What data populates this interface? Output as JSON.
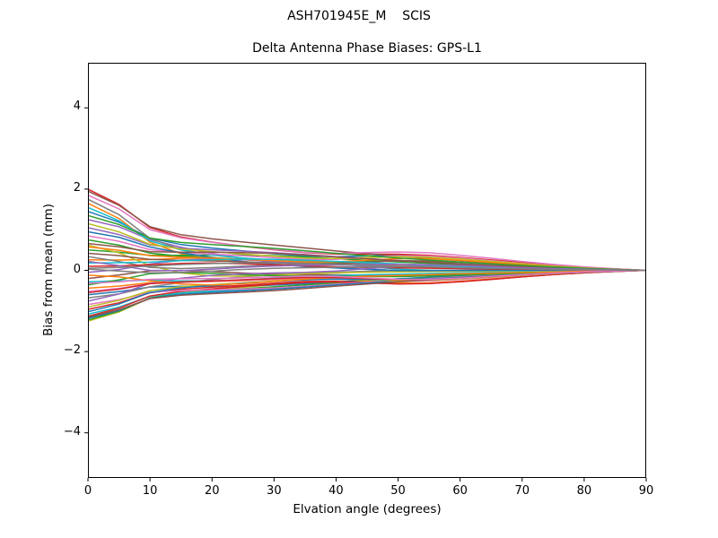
{
  "figure": {
    "suptitle": "ASH701945E_M    SCIS",
    "title": "Delta Antenna Phase Biases: GPS-L1",
    "background": "#ffffff",
    "frame_color": "#000000"
  },
  "axes": {
    "xlabel": "Elvation angle (degrees)",
    "ylabel": "Bias from mean (mm)",
    "xlim": [
      0,
      90
    ],
    "ylim": [
      -5.11,
      5.11
    ],
    "xticks": [
      {
        "v": 0,
        "label": "0"
      },
      {
        "v": 10,
        "label": "10"
      },
      {
        "v": 20,
        "label": "20"
      },
      {
        "v": 30,
        "label": "30"
      },
      {
        "v": 40,
        "label": "40"
      },
      {
        "v": 50,
        "label": "50"
      },
      {
        "v": 60,
        "label": "60"
      },
      {
        "v": 70,
        "label": "70"
      },
      {
        "v": 80,
        "label": "80"
      },
      {
        "v": 90,
        "label": "90"
      }
    ],
    "yticks": [
      {
        "v": -4,
        "label": "−4"
      },
      {
        "v": -2,
        "label": "−2"
      },
      {
        "v": 0,
        "label": "0"
      },
      {
        "v": 2,
        "label": "2"
      },
      {
        "v": 4,
        "label": "4"
      }
    ],
    "grid": false,
    "legend": "none"
  },
  "chart_data": {
    "type": "line",
    "title": "Delta Antenna Phase Biases: GPS-L1",
    "suptitle": "ASH701945E_M    SCIS",
    "xlabel": "Elvation angle (degrees)",
    "ylabel": "Bias from mean (mm)",
    "xlim": [
      0,
      90
    ],
    "ylim": [
      -5.11,
      5.11
    ],
    "grid": false,
    "legend": "none",
    "description": "Approximately 48 unlabeled antenna-calibration difference traces; each starts spread between -1.25 and +2.0 mm at 0 deg elevation, converges into a +/-0.6 mm band by 10-15 deg, bulges to about +/-0.4 mm near 50 deg, and converges to exactly 0 mm at 90 deg. value[i] = start*decay[i] + weight*bump[i].",
    "x": [
      0,
      5,
      10,
      15,
      20,
      25,
      30,
      35,
      40,
      45,
      50,
      55,
      60,
      65,
      70,
      75,
      80,
      85,
      90
    ],
    "decay": [
      1.0,
      0.8,
      0.5,
      0.37,
      0.3,
      0.25,
      0.21,
      0.18,
      0.155,
      0.135,
      0.115,
      0.1,
      0.085,
      0.07,
      0.055,
      0.04,
      0.025,
      0.012,
      0
    ],
    "bumps": {
      "g1": [
        0,
        0.1,
        0.3,
        0.45,
        0.5,
        0.46,
        0.38,
        0.3,
        0.24,
        0.2,
        0.17,
        0.14,
        0.11,
        0.09,
        0.07,
        0.05,
        0.03,
        0.015,
        0
      ],
      "g2": [
        0,
        0.05,
        0.12,
        0.18,
        0.21,
        0.21,
        0.19,
        0.17,
        0.2,
        0.29,
        0.37,
        0.38,
        0.33,
        0.26,
        0.18,
        0.11,
        0.06,
        0.025,
        0
      ],
      "g3": [
        0,
        0.08,
        0.2,
        0.31,
        0.38,
        0.42,
        0.43,
        0.4,
        0.35,
        0.3,
        0.25,
        0.2,
        0.15,
        0.11,
        0.08,
        0.05,
        0.03,
        0.012,
        0
      ],
      "g4": [
        0,
        -0.12,
        -0.22,
        -0.18,
        -0.08,
        0.04,
        0.12,
        0.17,
        0.2,
        0.23,
        0.25,
        0.23,
        0.19,
        0.15,
        0.11,
        0.07,
        0.04,
        0.02,
        0
      ]
    },
    "palette": [
      "#1f77b4",
      "#ff7f0e",
      "#2ca02c",
      "#d62728",
      "#9467bd",
      "#8c564b",
      "#e377c2",
      "#7f7f7f",
      "#bcbd22",
      "#17becf"
    ],
    "line_width": 1.5,
    "series": [
      {
        "color": "#1f77b4",
        "start": 1.45,
        "weight": 0.55,
        "bump": "g2"
      },
      {
        "color": "#ff7f0e",
        "start": 1.65,
        "weight": -0.45,
        "bump": "g1"
      },
      {
        "color": "#2ca02c",
        "start": 0.5,
        "weight": 0.6,
        "bump": "g3"
      },
      {
        "color": "#d62728",
        "start": 2.0,
        "weight": 0.45,
        "bump": "g2"
      },
      {
        "color": "#9467bd",
        "start": 1.25,
        "weight": -0.6,
        "bump": "g4"
      },
      {
        "color": "#8c564b",
        "start": 1.95,
        "weight": 0.5,
        "bump": "g3"
      },
      {
        "color": "#e377c2",
        "start": 1.85,
        "weight": 0.65,
        "bump": "g2"
      },
      {
        "color": "#7f7f7f",
        "start": 1.75,
        "weight": -0.3,
        "bump": "g1"
      },
      {
        "color": "#bcbd22",
        "start": -1.25,
        "weight": -0.5,
        "bump": "g2"
      },
      {
        "color": "#17becf",
        "start": 1.55,
        "weight": -0.4,
        "bump": "g2"
      },
      {
        "color": "#1f77b4",
        "start": -0.6,
        "weight": -0.55,
        "bump": "g3"
      },
      {
        "color": "#ff7f0e",
        "start": 0.26,
        "weight": 0.45,
        "bump": "g1"
      },
      {
        "color": "#2ca02c",
        "start": -1.22,
        "weight": -0.35,
        "bump": "g3"
      },
      {
        "color": "#d62728",
        "start": -0.96,
        "weight": -0.6,
        "bump": "g2"
      },
      {
        "color": "#9467bd",
        "start": 1.05,
        "weight": 0.5,
        "bump": "g3"
      },
      {
        "color": "#8c564b",
        "start": -0.2,
        "weight": -0.4,
        "bump": "g4"
      },
      {
        "color": "#e377c2",
        "start": 0.85,
        "weight": 0.7,
        "bump": "g2"
      },
      {
        "color": "#7f7f7f",
        "start": -0.68,
        "weight": 0.3,
        "bump": "g4"
      },
      {
        "color": "#bcbd22",
        "start": 0.62,
        "weight": -0.65,
        "bump": "g1"
      },
      {
        "color": "#17becf",
        "start": -1.08,
        "weight": -0.5,
        "bump": "g3"
      },
      {
        "color": "#1f77b4",
        "start": 0.95,
        "weight": -0.45,
        "bump": "g4"
      },
      {
        "color": "#ff7f0e",
        "start": -0.44,
        "weight": -0.7,
        "bump": "g2"
      },
      {
        "color": "#2ca02c",
        "start": 0.75,
        "weight": 0.4,
        "bump": "g2"
      },
      {
        "color": "#d62728",
        "start": -1.13,
        "weight": -0.55,
        "bump": "g2"
      },
      {
        "color": "#9467bd",
        "start": -0.05,
        "weight": 0.6,
        "bump": "g1"
      },
      {
        "color": "#8c564b",
        "start": 0.42,
        "weight": 0.5,
        "bump": "g2"
      },
      {
        "color": "#e377c2",
        "start": -0.84,
        "weight": -0.6,
        "bump": "g3"
      },
      {
        "color": "#7f7f7f",
        "start": 0.34,
        "weight": 0.45,
        "bump": "g4"
      },
      {
        "color": "#bcbd22",
        "start": 1.15,
        "weight": 0.55,
        "bump": "g2"
      },
      {
        "color": "#17becf",
        "start": -0.28,
        "weight": -0.35,
        "bump": "g1"
      },
      {
        "color": "#1f77b4",
        "start": -1.18,
        "weight": -0.5,
        "bump": "g3"
      },
      {
        "color": "#ff7f0e",
        "start": 0.58,
        "weight": 0.6,
        "bump": "g2"
      },
      {
        "color": "#2ca02c",
        "start": -0.36,
        "weight": -0.45,
        "bump": "g4"
      },
      {
        "color": "#d62728",
        "start": 0.1,
        "weight": 0.3,
        "bump": "g1"
      },
      {
        "color": "#9467bd",
        "start": -0.76,
        "weight": 0.5,
        "bump": "g2"
      },
      {
        "color": "#8c564b",
        "start": 0.66,
        "weight": 0.65,
        "bump": "g3"
      },
      {
        "color": "#e377c2",
        "start": -0.52,
        "weight": -0.55,
        "bump": "g2"
      },
      {
        "color": "#7f7f7f",
        "start": 0.03,
        "weight": 0.35,
        "bump": "g4"
      },
      {
        "color": "#bcbd22",
        "start": -0.9,
        "weight": -0.4,
        "bump": "g2"
      },
      {
        "color": "#17becf",
        "start": 0.18,
        "weight": 0.55,
        "bump": "g3"
      },
      {
        "color": "#1f77b4",
        "start": -1.02,
        "weight": -0.3,
        "bump": "g2"
      },
      {
        "color": "#ff7f0e",
        "start": -0.12,
        "weight": -0.65,
        "bump": "g1"
      },
      {
        "color": "#2ca02c",
        "start": 1.35,
        "weight": 0.6,
        "bump": "g3"
      },
      {
        "color": "#d62728",
        "start": -0.55,
        "weight": -0.45,
        "bump": "g2"
      },
      {
        "color": "#9467bd",
        "start": 0.22,
        "weight": 0.5,
        "bump": "g4"
      },
      {
        "color": "#8c564b",
        "start": -1.15,
        "weight": -0.6,
        "bump": "g3"
      },
      {
        "color": "#e377c2",
        "start": -0.32,
        "weight": -0.5,
        "bump": "g2"
      },
      {
        "color": "#7f7f7f",
        "start": 0.05,
        "weight": 0.4,
        "bump": "g3"
      }
    ]
  }
}
